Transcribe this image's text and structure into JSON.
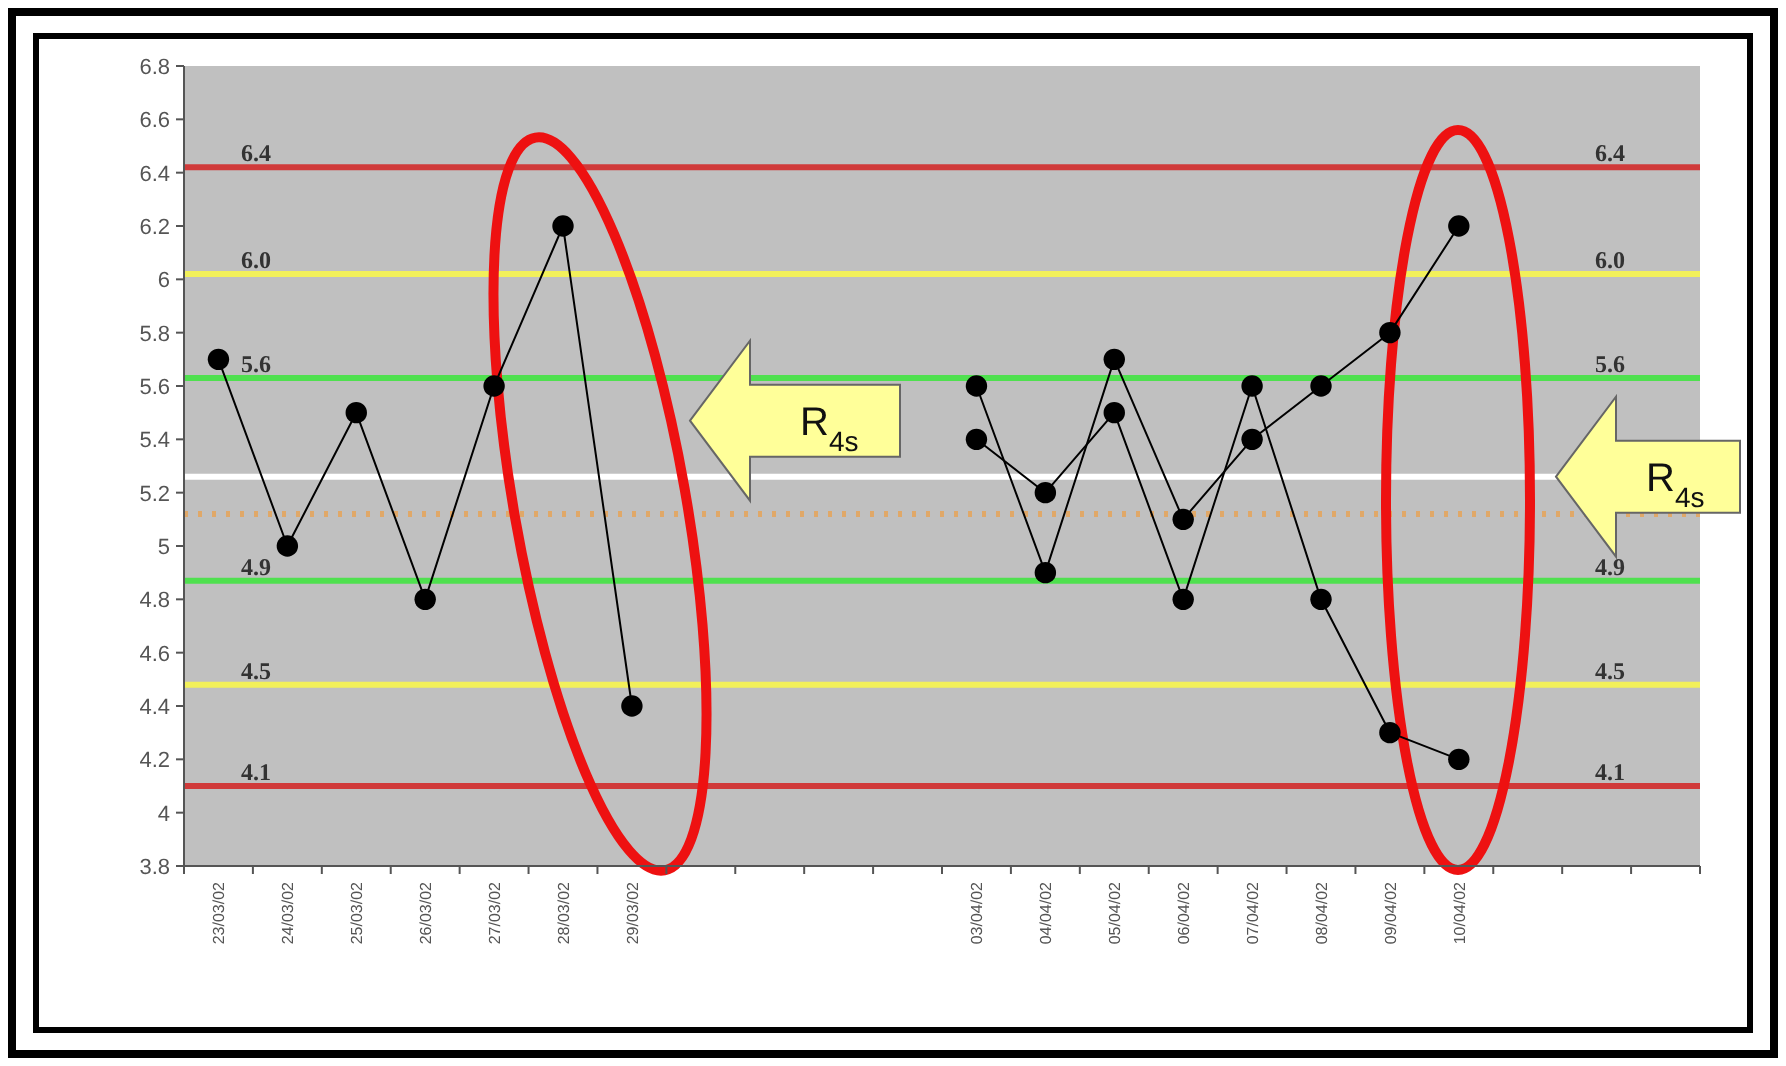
{
  "chart_data": {
    "type": "line",
    "categories": [
      "23/03/02",
      "24/03/02",
      "25/03/02",
      "26/03/02",
      "27/03/02",
      "28/03/02",
      "29/03/02",
      null,
      null,
      null,
      null,
      "03/04/02",
      "04/04/02",
      "05/04/02",
      "06/04/02",
      "07/04/02",
      "08/04/02",
      "09/04/02",
      "10/04/02",
      null,
      null,
      null
    ],
    "series": [
      {
        "color": "#000000",
        "values": [
          5.7,
          5.0,
          5.5,
          4.8,
          5.6,
          6.2,
          4.4,
          null,
          null,
          null,
          null,
          null,
          null,
          null,
          null,
          null,
          null,
          null,
          null,
          null,
          null,
          null
        ]
      },
      {
        "color": "#000000",
        "values": [
          null,
          null,
          null,
          null,
          null,
          null,
          null,
          null,
          null,
          null,
          null,
          5.6,
          4.9,
          5.7,
          5.1,
          5.4,
          5.6,
          5.8,
          6.2,
          null,
          null,
          null
        ]
      },
      {
        "color": "#000000",
        "values": [
          null,
          null,
          null,
          null,
          null,
          null,
          null,
          null,
          null,
          null,
          null,
          5.4,
          5.2,
          5.5,
          4.8,
          5.6,
          4.8,
          4.3,
          4.2,
          null,
          null,
          null
        ]
      }
    ],
    "ylim": [
      3.8,
      6.8
    ],
    "yticks": [
      3.8,
      4,
      4.2,
      4.4,
      4.6,
      4.8,
      5,
      5.2,
      5.4,
      5.6,
      5.8,
      6,
      6.2,
      6.4,
      6.6,
      6.8
    ],
    "marker": "circle",
    "grid": false,
    "ref_lines": [
      {
        "axis": "y",
        "value": 6.42,
        "label": "6.4",
        "color": "#d03a3a"
      },
      {
        "axis": "y",
        "value": 6.02,
        "label": "6.0",
        "color": "#f2f05a"
      },
      {
        "axis": "y",
        "value": 5.63,
        "label": "5.6",
        "color": "#4fe04f"
      },
      {
        "axis": "y",
        "value": 5.26,
        "color": "#ffffff"
      },
      {
        "axis": "y",
        "value": 5.12,
        "color": "#e0a868",
        "line_style": "dotted"
      },
      {
        "axis": "y",
        "value": 4.87,
        "label": "4.9",
        "color": "#4fe04f"
      },
      {
        "axis": "y",
        "value": 4.48,
        "label": "4.5",
        "color": "#f2f05a"
      },
      {
        "axis": "y",
        "value": 4.1,
        "label": "4.1",
        "color": "#d03a3a"
      }
    ],
    "annotations": [
      "R$_{4s}$",
      "R$_{4s}$"
    ]
  }
}
